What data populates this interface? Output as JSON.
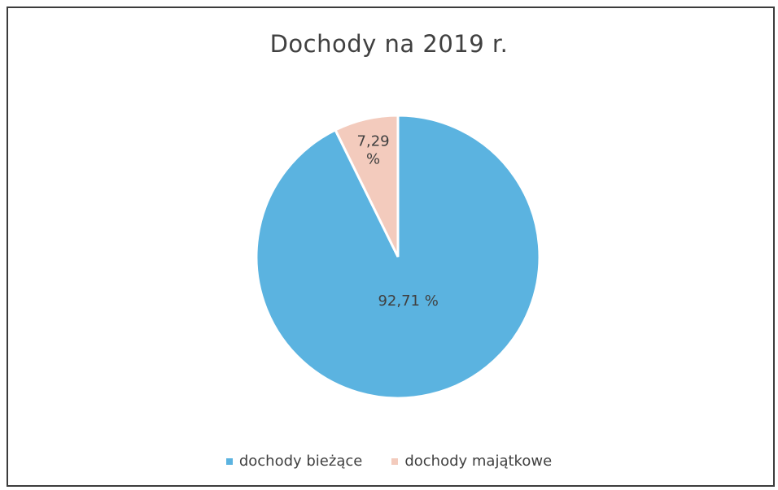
{
  "chart_data": {
    "type": "pie",
    "title": "Dochody na 2019 r.",
    "categories": [
      "dochody bieżące",
      "dochody majątkowe"
    ],
    "values": [
      92.71,
      7.29
    ],
    "data_labels": [
      "92,71 %",
      "7,29 %"
    ],
    "colors": [
      "#5bb3e0",
      "#f3cbbd"
    ],
    "legend_position": "bottom"
  },
  "legend": {
    "items": [
      {
        "label": "dochody bieżące",
        "color": "#5bb3e0"
      },
      {
        "label": "dochody majątkowe",
        "color": "#f3cbbd"
      }
    ]
  }
}
